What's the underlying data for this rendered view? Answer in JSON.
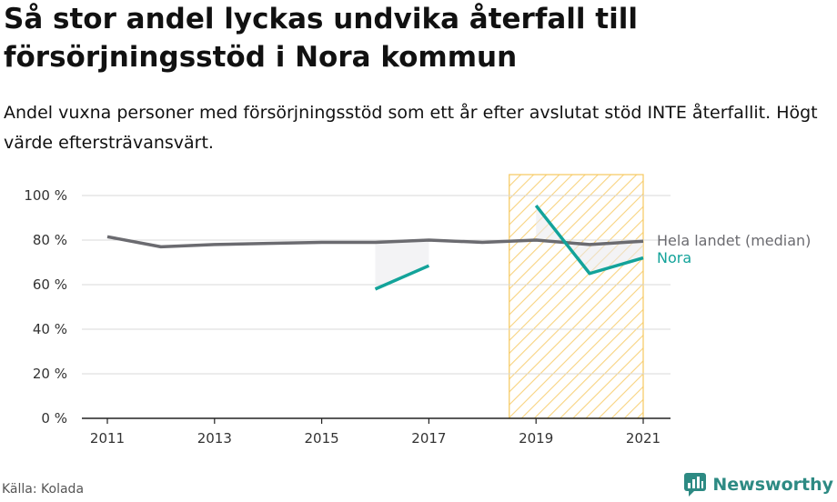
{
  "title": "Så stor andel lyckas undvika återfall till försörjningsstöd i Nora kommun",
  "subtitle": "Andel vuxna personer med försörjningsstöd som ett år efter avslutat stöd INTE återfallit. Högt värde eftersträvansvärt.",
  "source": "Källa: Kolada",
  "brand": "Newsworthy",
  "colors": {
    "national": "#6b6b70",
    "nora": "#13a39a",
    "highlight": "#f6c85f",
    "grid": "#d8d8d8",
    "brand": "#2d8a83"
  },
  "chart_data": {
    "type": "line",
    "x": [
      2011,
      2012,
      2013,
      2014,
      2015,
      2016,
      2017,
      2018,
      2019,
      2020,
      2021
    ],
    "x_ticks": [
      "2011",
      "2013",
      "2015",
      "2017",
      "2019",
      "2021"
    ],
    "y_ticks": [
      "0 %",
      "20 %",
      "40 %",
      "60 %",
      "80 %",
      "100 %"
    ],
    "ylim": [
      0,
      100
    ],
    "grid": true,
    "highlight_range": [
      2018.5,
      2021
    ],
    "series": [
      {
        "name": "Hela landet (median)",
        "values": [
          81.5,
          77,
          78,
          78.5,
          79,
          79,
          80,
          79,
          80,
          78,
          79.5
        ]
      },
      {
        "name": "Nora",
        "values": [
          null,
          null,
          null,
          null,
          null,
          58,
          68.5,
          null,
          95.5,
          65,
          72
        ]
      }
    ]
  }
}
